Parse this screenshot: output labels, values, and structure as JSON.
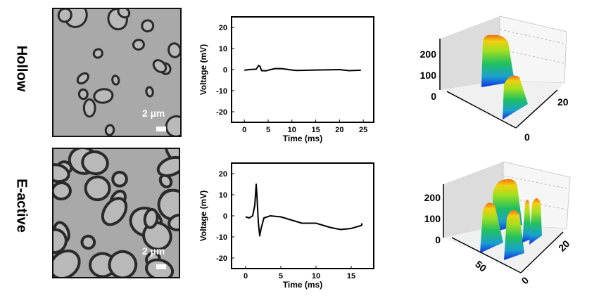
{
  "rows": [
    {
      "label": "Hollow",
      "scale_label": "2 µm"
    },
    {
      "label": "E-active",
      "scale_label": "2 µm"
    }
  ],
  "chart_data": [
    {
      "type": "line",
      "title": "",
      "xlabel": "Time (ms)",
      "ylabel": "Voltage (mV)",
      "xlim": [
        -2.7,
        27.2
      ],
      "ylim": [
        -25,
        25
      ],
      "xticks": [
        0,
        5,
        10,
        15,
        20,
        25
      ],
      "yticks": [
        -20,
        -10,
        0,
        10,
        20
      ],
      "x": [
        0,
        1,
        2.5,
        3,
        3.3,
        3.6,
        4.5,
        5.5,
        6.5,
        8,
        10,
        11,
        15,
        20,
        22,
        24.5
      ],
      "y": [
        -0.3,
        0,
        0.2,
        2,
        1.5,
        -0.5,
        -0.6,
        0,
        0.5,
        0.4,
        -0.2,
        -0.4,
        -0.2,
        0,
        -0.5,
        -0.3
      ]
    },
    {
      "type": "line",
      "title": "",
      "xlabel": "Time (ms)",
      "ylabel": "Voltage (mV)",
      "xlim": [
        -2,
        18.2
      ],
      "ylim": [
        -25,
        25
      ],
      "xticks": [
        0,
        5,
        10,
        15
      ],
      "yticks": [
        -20,
        -10,
        0,
        10,
        20
      ],
      "x": [
        0,
        0.5,
        1,
        1.3,
        1.5,
        1.6,
        1.8,
        2.0,
        2.2,
        2.6,
        3.5,
        5,
        7,
        8,
        10,
        12,
        13.5,
        15,
        16.5,
        16.5
      ],
      "y": [
        -0.5,
        -1,
        0,
        5,
        15,
        10,
        -3,
        -9.5,
        -6,
        -1,
        0,
        -0.5,
        -2.5,
        -3.5,
        -3.5,
        -5.5,
        -6.5,
        -6,
        -4.5,
        -3.5
      ]
    },
    {
      "type": "surface3d",
      "z_ticks": [
        "0",
        "100",
        "200"
      ],
      "y_ticks": [
        "0",
        "20"
      ],
      "x_ticks": []
    },
    {
      "type": "surface3d",
      "z_ticks": [
        "0",
        "100",
        "200"
      ],
      "y_ticks": [
        "0",
        "20"
      ],
      "x_ticks": [
        "50"
      ]
    }
  ]
}
